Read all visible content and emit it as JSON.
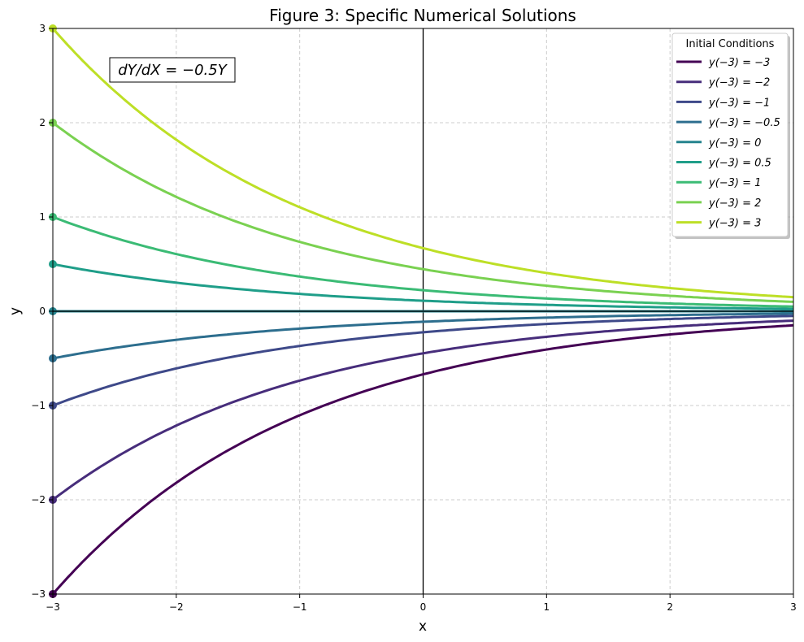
{
  "chart_data": {
    "type": "line",
    "title": "Figure 3: Specific Numerical Solutions",
    "xlabel": "x",
    "ylabel": "y",
    "xlim": [
      -3,
      3
    ],
    "ylim": [
      -3,
      3
    ],
    "xticks": [
      -3,
      -2,
      -1,
      0,
      1,
      2,
      3
    ],
    "yticks": [
      -3,
      -2,
      -1,
      0,
      1,
      2,
      3
    ],
    "xtick_labels": [
      "−3",
      "−2",
      "−1",
      "0",
      "1",
      "2",
      "3"
    ],
    "ytick_labels": [
      "−3",
      "−2",
      "−1",
      "0",
      "1",
      "2",
      "3"
    ],
    "grid": true,
    "annotation": "dY/dX = −0.5Y",
    "equation": {
      "k": -0.5,
      "x0": -3
    },
    "legend": {
      "title": "Initial Conditions",
      "placement": "top-right"
    },
    "series": [
      {
        "name": "y(−3) = −3",
        "y0": -3,
        "color": "#440154"
      },
      {
        "name": "y(−3) = −2",
        "y0": -2,
        "color": "#472d7b"
      },
      {
        "name": "y(−3) = −1",
        "y0": -1,
        "color": "#3e4989"
      },
      {
        "name": "y(−3) = −0.5",
        "y0": -0.5,
        "color": "#2d6e8e"
      },
      {
        "name": "y(−3) = 0",
        "y0": 0,
        "color": "#25838e"
      },
      {
        "name": "y(−3) = 0.5",
        "y0": 0.5,
        "color": "#1f9e89"
      },
      {
        "name": "y(−3) = 1",
        "y0": 1,
        "color": "#3bbb75"
      },
      {
        "name": "y(−3) = 2",
        "y0": 2,
        "color": "#7ad151"
      },
      {
        "name": "y(−3) = 3",
        "y0": 3,
        "color": "#bddf26"
      }
    ]
  }
}
